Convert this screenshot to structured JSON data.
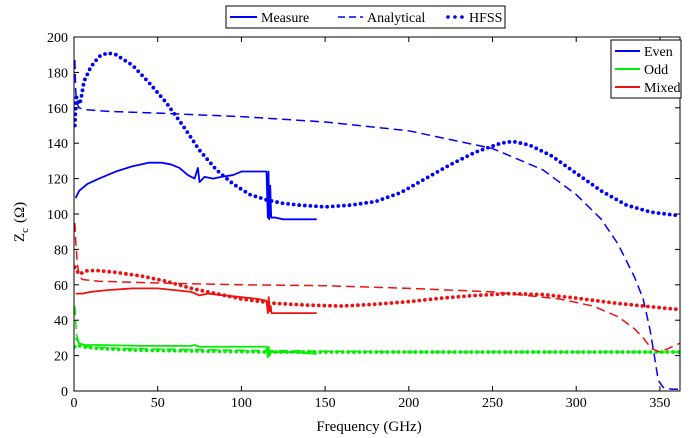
{
  "chart_data": {
    "type": "line",
    "xlabel": "Frequency (GHz)",
    "ylabel_main": "Z",
    "ylabel_sub": "c",
    "ylabel_unit": "(Ω)",
    "xlim": [
      0,
      362
    ],
    "ylim": [
      0,
      200
    ],
    "xticks": [
      0,
      50,
      100,
      150,
      200,
      250,
      300,
      350
    ],
    "yticks": [
      0,
      20,
      40,
      60,
      80,
      100,
      120,
      140,
      160,
      180,
      200
    ],
    "grid": false,
    "colors": {
      "even": "#0000ff",
      "odd": "#00ee00",
      "mixed": "#ee1111",
      "legend_line": "#0000ff"
    },
    "style_legend": {
      "placement": "top-center-outside",
      "entries": [
        {
          "label": "Measure",
          "style": "solid"
        },
        {
          "label": "Analytical",
          "style": "dashed"
        },
        {
          "label": "HFSS",
          "style": "dotted"
        }
      ]
    },
    "mode_legend": {
      "placement": "top-right",
      "entries": [
        {
          "label": "Even",
          "color_key": "even"
        },
        {
          "label": "Odd",
          "color_key": "odd"
        },
        {
          "label": "Mixed",
          "color_key": "mixed"
        }
      ]
    },
    "series": [
      {
        "mode": "Even",
        "method": "Measure",
        "style": "solid",
        "color_key": "even",
        "points": [
          [
            1,
            109
          ],
          [
            3,
            113
          ],
          [
            8,
            117
          ],
          [
            15,
            120
          ],
          [
            25,
            124
          ],
          [
            35,
            127
          ],
          [
            45,
            129
          ],
          [
            52,
            129
          ],
          [
            58,
            128
          ],
          [
            63,
            126
          ],
          [
            68,
            122
          ],
          [
            72,
            120
          ],
          [
            74,
            126
          ],
          [
            75,
            118
          ],
          [
            78,
            121
          ],
          [
            83,
            120
          ],
          [
            88,
            121
          ],
          [
            95,
            122
          ],
          [
            100,
            124
          ],
          [
            108,
            124
          ],
          [
            115,
            124
          ],
          [
            115.8,
            98
          ],
          [
            116.2,
            124
          ],
          [
            116.6,
            97
          ],
          [
            117.2,
            116
          ],
          [
            117.8,
            98
          ],
          [
            120,
            98
          ],
          [
            125,
            97
          ],
          [
            135,
            97
          ],
          [
            145,
            97
          ]
        ]
      },
      {
        "mode": "Even",
        "method": "Analytical",
        "style": "dashed",
        "color_key": "even",
        "points": [
          [
            0.5,
            187
          ],
          [
            1,
            170
          ],
          [
            1.6,
            163
          ],
          [
            3,
            160
          ],
          [
            6,
            159
          ],
          [
            20,
            158
          ],
          [
            50,
            157
          ],
          [
            100,
            155
          ],
          [
            150,
            152
          ],
          [
            200,
            147
          ],
          [
            250,
            137
          ],
          [
            280,
            125
          ],
          [
            300,
            111
          ],
          [
            315,
            97
          ],
          [
            325,
            83
          ],
          [
            335,
            64
          ],
          [
            340,
            52
          ],
          [
            344,
            35
          ],
          [
            347,
            18
          ],
          [
            349,
            6
          ],
          [
            352,
            2
          ],
          [
            357,
            1
          ],
          [
            362,
            1
          ]
        ]
      },
      {
        "mode": "Even",
        "method": "HFSS",
        "style": "dotted",
        "color_key": "even",
        "points": [
          [
            0.5,
            150
          ],
          [
            1,
            160
          ],
          [
            1.5,
            166
          ],
          [
            2,
            165
          ],
          [
            2.5,
            164
          ],
          [
            3,
            162
          ],
          [
            4,
            164
          ],
          [
            6,
            175
          ],
          [
            10,
            183
          ],
          [
            15,
            189
          ],
          [
            20,
            191
          ],
          [
            25,
            190
          ],
          [
            35,
            184
          ],
          [
            45,
            174
          ],
          [
            55,
            163
          ],
          [
            65,
            150
          ],
          [
            75,
            136
          ],
          [
            85,
            125
          ],
          [
            95,
            117
          ],
          [
            105,
            111
          ],
          [
            115,
            108
          ],
          [
            125,
            106
          ],
          [
            135,
            105
          ],
          [
            150,
            104
          ],
          [
            165,
            105
          ],
          [
            180,
            107
          ],
          [
            195,
            112
          ],
          [
            210,
            120
          ],
          [
            225,
            128
          ],
          [
            240,
            135
          ],
          [
            255,
            140
          ],
          [
            262,
            141
          ],
          [
            272,
            139
          ],
          [
            285,
            133
          ],
          [
            300,
            123
          ],
          [
            315,
            113
          ],
          [
            330,
            105
          ],
          [
            345,
            101
          ],
          [
            362,
            99
          ]
        ]
      },
      {
        "mode": "Odd",
        "method": "Measure",
        "style": "solid",
        "color_key": "odd",
        "points": [
          [
            1,
            30
          ],
          [
            3,
            27
          ],
          [
            6,
            26
          ],
          [
            15,
            26
          ],
          [
            40,
            25.5
          ],
          [
            70,
            25.5
          ],
          [
            72,
            26
          ],
          [
            75,
            25
          ],
          [
            100,
            25
          ],
          [
            115,
            25
          ],
          [
            115.8,
            19
          ],
          [
            116.3,
            25
          ],
          [
            116.9,
            20
          ],
          [
            117.5,
            22
          ],
          [
            120,
            22
          ],
          [
            130,
            22
          ],
          [
            145,
            21
          ]
        ]
      },
      {
        "mode": "Odd",
        "method": "Analytical",
        "style": "dashed",
        "color_key": "odd",
        "points": [
          [
            0.5,
            48
          ],
          [
            1.5,
            32
          ],
          [
            3,
            27
          ],
          [
            8,
            25
          ],
          [
            30,
            24
          ],
          [
            100,
            23
          ],
          [
            200,
            22
          ],
          [
            300,
            22
          ],
          [
            345,
            22
          ],
          [
            362,
            22
          ]
        ]
      },
      {
        "mode": "Odd",
        "method": "HFSS",
        "style": "dotted",
        "color_key": "odd",
        "points": [
          [
            0.5,
            25
          ],
          [
            2,
            26
          ],
          [
            5,
            25
          ],
          [
            15,
            24
          ],
          [
            40,
            23
          ],
          [
            80,
            22.5
          ],
          [
            120,
            22
          ],
          [
            180,
            22
          ],
          [
            250,
            22
          ],
          [
            300,
            22
          ],
          [
            362,
            22
          ]
        ]
      },
      {
        "mode": "Mixed",
        "method": "Measure",
        "style": "solid",
        "color_key": "mixed",
        "points": [
          [
            1,
            55
          ],
          [
            5,
            55
          ],
          [
            10,
            56
          ],
          [
            20,
            57
          ],
          [
            35,
            58
          ],
          [
            50,
            58
          ],
          [
            60,
            57
          ],
          [
            70,
            56
          ],
          [
            75,
            54
          ],
          [
            80,
            55
          ],
          [
            90,
            54
          ],
          [
            100,
            53
          ],
          [
            110,
            52
          ],
          [
            115,
            51
          ],
          [
            115.8,
            44
          ],
          [
            116.3,
            53
          ],
          [
            116.9,
            45
          ],
          [
            117.5,
            48
          ],
          [
            118,
            44
          ],
          [
            125,
            44
          ],
          [
            135,
            44
          ],
          [
            145,
            44
          ]
        ]
      },
      {
        "mode": "Mixed",
        "method": "Analytical",
        "style": "dashed",
        "color_key": "mixed",
        "points": [
          [
            0.5,
            95
          ],
          [
            1,
            85
          ],
          [
            2,
            72
          ],
          [
            3,
            65
          ],
          [
            5,
            63
          ],
          [
            15,
            62
          ],
          [
            50,
            61
          ],
          [
            100,
            60
          ],
          [
            150,
            59.5
          ],
          [
            200,
            58
          ],
          [
            250,
            56
          ],
          [
            290,
            52
          ],
          [
            310,
            48
          ],
          [
            325,
            42
          ],
          [
            335,
            35
          ],
          [
            340,
            30
          ],
          [
            345,
            24
          ],
          [
            350,
            22
          ],
          [
            355,
            24
          ],
          [
            362,
            27
          ]
        ]
      },
      {
        "mode": "Mixed",
        "method": "HFSS",
        "style": "dotted",
        "color_key": "mixed",
        "points": [
          [
            0.5,
            70
          ],
          [
            3,
            66
          ],
          [
            8,
            68
          ],
          [
            15,
            68
          ],
          [
            25,
            67
          ],
          [
            40,
            65
          ],
          [
            55,
            62
          ],
          [
            70,
            58
          ],
          [
            85,
            55
          ],
          [
            100,
            52
          ],
          [
            120,
            49.5
          ],
          [
            140,
            48.5
          ],
          [
            160,
            48
          ],
          [
            180,
            49
          ],
          [
            200,
            50.5
          ],
          [
            220,
            52.5
          ],
          [
            240,
            54
          ],
          [
            260,
            55
          ],
          [
            280,
            54.5
          ],
          [
            300,
            52.5
          ],
          [
            320,
            50
          ],
          [
            340,
            48
          ],
          [
            362,
            46
          ]
        ]
      }
    ]
  }
}
